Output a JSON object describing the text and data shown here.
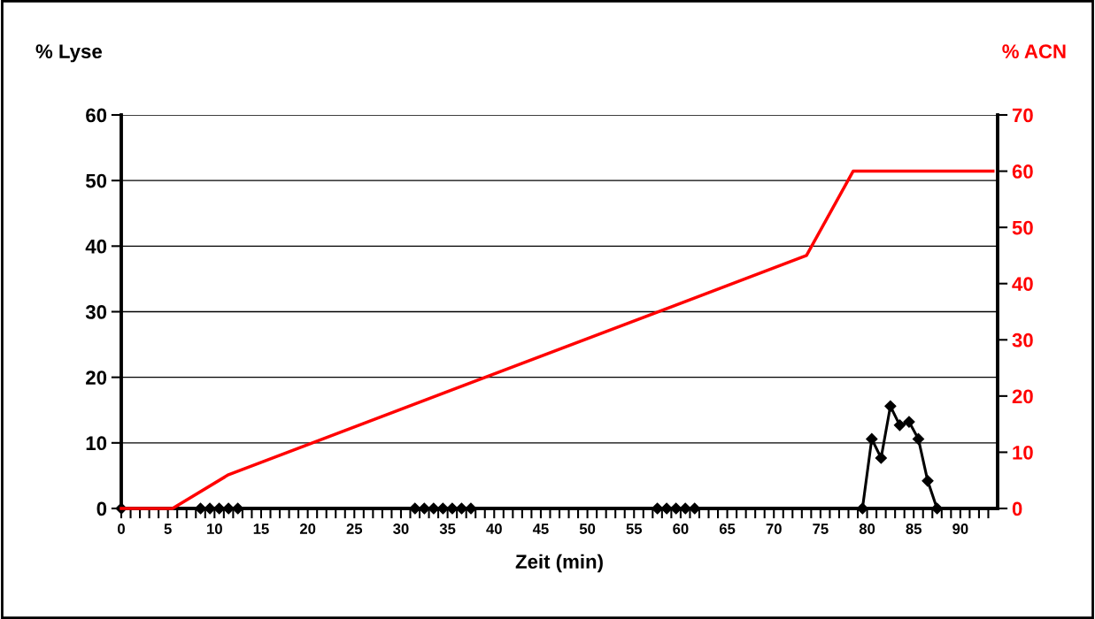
{
  "chart_data": {
    "type": "line",
    "xlabel": "Zeit (min)",
    "ylabel": "% Lyse",
    "y2label": "% ACN",
    "xlim": [
      0,
      94
    ],
    "ylim": [
      0,
      60
    ],
    "y2lim": [
      0,
      70
    ],
    "xticks": [
      0,
      {
        "value": 1,
        "label": null
      },
      {
        "value": 2,
        "label": null
      },
      {
        "value": 3,
        "label": null
      },
      {
        "value": 4,
        "label": null
      },
      5,
      {
        "value": 6,
        "label": null
      },
      {
        "value": 7,
        "label": null
      },
      {
        "value": 8,
        "label": null
      },
      {
        "value": 9,
        "label": null
      },
      10,
      {
        "value": 11,
        "label": null
      },
      {
        "value": 12,
        "label": null
      },
      {
        "value": 13,
        "label": null
      },
      {
        "value": 14,
        "label": null
      },
      15,
      {
        "value": 16,
        "label": null
      },
      {
        "value": 17,
        "label": null
      },
      {
        "value": 18,
        "label": null
      },
      {
        "value": 19,
        "label": null
      },
      20,
      {
        "value": 21,
        "label": null
      },
      {
        "value": 22,
        "label": null
      },
      {
        "value": 23,
        "label": null
      },
      {
        "value": 24,
        "label": null
      },
      25,
      {
        "value": 26,
        "label": null
      },
      {
        "value": 27,
        "label": null
      },
      {
        "value": 28,
        "label": null
      },
      {
        "value": 29,
        "label": null
      },
      30,
      {
        "value": 31,
        "label": null
      },
      {
        "value": 32,
        "label": null
      },
      {
        "value": 33,
        "label": null
      },
      {
        "value": 34,
        "label": null
      },
      35,
      {
        "value": 36,
        "label": null
      },
      {
        "value": 37,
        "label": null
      },
      {
        "value": 38,
        "label": null
      },
      {
        "value": 39,
        "label": null
      },
      40,
      {
        "value": 41,
        "label": null
      },
      {
        "value": 42,
        "label": null
      },
      {
        "value": 43,
        "label": null
      },
      {
        "value": 44,
        "label": null
      },
      45,
      {
        "value": 46,
        "label": null
      },
      {
        "value": 47,
        "label": null
      },
      {
        "value": 48,
        "label": null
      },
      {
        "value": 49,
        "label": null
      },
      50,
      {
        "value": 51,
        "label": null
      },
      {
        "value": 52,
        "label": null
      },
      {
        "value": 53,
        "label": null
      },
      {
        "value": 54,
        "label": null
      },
      55,
      {
        "value": 56,
        "label": null
      },
      {
        "value": 57,
        "label": null
      },
      {
        "value": 58,
        "label": null
      },
      {
        "value": 59,
        "label": null
      },
      60,
      {
        "value": 61,
        "label": null
      },
      {
        "value": 62,
        "label": null
      },
      {
        "value": 63,
        "label": null
      },
      {
        "value": 64,
        "label": null
      },
      65,
      {
        "value": 66,
        "label": null
      },
      {
        "value": 67,
        "label": null
      },
      {
        "value": 68,
        "label": null
      },
      {
        "value": 69,
        "label": null
      },
      70,
      {
        "value": 71,
        "label": null
      },
      {
        "value": 72,
        "label": null
      },
      {
        "value": 73,
        "label": null
      },
      {
        "value": 74,
        "label": null
      },
      75,
      {
        "value": 76,
        "label": null
      },
      {
        "value": 77,
        "label": null
      },
      {
        "value": 78,
        "label": null
      },
      {
        "value": 79,
        "label": null
      },
      80,
      {
        "value": 81,
        "label": null
      },
      {
        "value": 82,
        "label": null
      },
      {
        "value": 83,
        "label": null
      },
      {
        "value": 84,
        "label": null
      },
      85,
      {
        "value": 86,
        "label": null
      },
      {
        "value": 87,
        "label": null
      },
      {
        "value": 88,
        "label": null
      },
      {
        "value": 89,
        "label": null
      },
      90,
      {
        "value": 91,
        "label": null
      },
      {
        "value": 92,
        "label": null
      },
      {
        "value": 93,
        "label": null
      }
    ],
    "yticks": [
      0,
      10,
      20,
      30,
      40,
      50,
      60
    ],
    "y2ticks": [
      0,
      10,
      20,
      30,
      40,
      50,
      60,
      70
    ],
    "grid": "y",
    "marker": "diamond",
    "line_style": "solid",
    "series": [
      {
        "color": "#ff0000",
        "axis": "y2",
        "marker": "none",
        "x": [
          0,
          5.5,
          11.5,
          73.5,
          78.5,
          93.5
        ],
        "values": [
          0,
          0,
          6,
          45,
          60,
          60
        ]
      },
      {
        "color": "#000000",
        "x": [
          0,
          8.5,
          9.5,
          10.5,
          11.5,
          12.5,
          31.5,
          32.5,
          33.5,
          34.5,
          35.5,
          36.5,
          37.5,
          57.5,
          58.5,
          59.5,
          60.5,
          61.5,
          79.5,
          80.5,
          81.5,
          82.5,
          83.5,
          84.5,
          85.5,
          86.5,
          87.5
        ],
        "values": [
          0,
          0,
          0,
          0,
          0,
          0,
          0,
          0,
          0,
          0,
          0,
          0,
          0,
          0,
          0,
          0,
          0,
          0,
          0,
          10.6,
          7.7,
          15.6,
          12.7,
          13.2,
          10.6,
          4.2,
          0
        ]
      }
    ]
  }
}
